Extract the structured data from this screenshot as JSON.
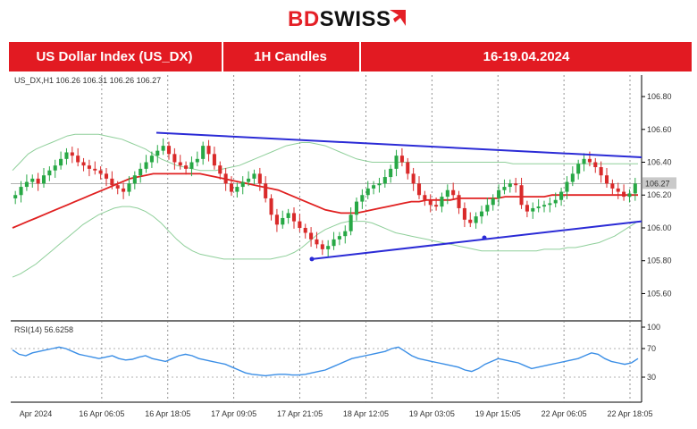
{
  "logo": {
    "part1": "BD",
    "part2": "SWISS"
  },
  "banner": {
    "instrument": "US Dollar Index (US_DX)",
    "timeframe": "1H Candles",
    "dates": "16-19.04.2024"
  },
  "chart_data": {
    "type": "candlestick",
    "symbol_label": "US_DX,H1  106.26 106.31 106.26 106.27",
    "last_price_label": "106.27",
    "last_price": 106.27,
    "ylim": [
      105.45,
      106.92
    ],
    "y_ticks": [
      105.6,
      105.8,
      106.0,
      106.2,
      106.4,
      106.6,
      106.8
    ],
    "y_tick_labels": [
      "105.60",
      "105.80",
      "106.00",
      "106.20",
      "106.40",
      "106.60",
      "106.80"
    ],
    "x_tick_labels": [
      "Apr 2024",
      "16 Apr 06:05",
      "16 Apr 18:05",
      "17 Apr 09:05",
      "17 Apr 21:05",
      "18 Apr 12:05",
      "19 Apr 03:05",
      "19 Apr 15:05",
      "22 Apr 06:05",
      "22 Apr 18:05"
    ],
    "closes": [
      106.2,
      106.25,
      106.28,
      106.3,
      106.27,
      106.32,
      106.35,
      106.38,
      106.42,
      106.46,
      106.44,
      106.4,
      106.38,
      106.36,
      106.35,
      106.33,
      106.3,
      106.26,
      106.24,
      106.22,
      106.27,
      106.32,
      106.36,
      106.4,
      106.44,
      106.47,
      106.5,
      106.45,
      106.4,
      106.38,
      106.36,
      106.4,
      106.42,
      106.5,
      106.45,
      106.38,
      106.33,
      106.27,
      106.22,
      106.25,
      106.28,
      106.3,
      106.33,
      106.27,
      106.18,
      106.08,
      106.02,
      106.06,
      106.09,
      106.04,
      106.0,
      105.97,
      105.93,
      105.9,
      105.87,
      105.89,
      105.93,
      105.95,
      105.98,
      106.08,
      106.16,
      106.2,
      106.24,
      106.26,
      106.27,
      106.31,
      106.36,
      106.44,
      106.4,
      106.33,
      106.27,
      106.2,
      106.17,
      106.14,
      106.13,
      106.19,
      106.23,
      106.2,
      106.12,
      106.05,
      106.03,
      106.07,
      106.1,
      106.14,
      106.18,
      106.23,
      106.25,
      106.27,
      106.26,
      106.14,
      106.1,
      106.12,
      106.13,
      106.14,
      106.15,
      106.17,
      106.22,
      106.28,
      106.33,
      106.39,
      106.42,
      106.4,
      106.37,
      106.32,
      106.27,
      106.24,
      106.22,
      106.19,
      106.21,
      106.27
    ],
    "series": [
      {
        "name": "MA (red)",
        "color": "#e02020",
        "values": [
          106.0,
          106.02,
          106.04,
          106.06,
          106.08,
          106.1,
          106.12,
          106.14,
          106.16,
          106.18,
          106.2,
          106.22,
          106.24,
          106.26,
          106.28,
          106.3,
          106.31,
          106.32,
          106.33,
          106.33,
          106.33,
          106.33,
          106.33,
          106.33,
          106.33,
          106.32,
          106.31,
          106.3,
          106.29,
          106.28,
          106.27,
          106.26,
          106.25,
          106.24,
          106.23,
          106.21,
          106.19,
          106.17,
          106.15,
          106.13,
          106.11,
          106.1,
          106.09,
          106.09,
          106.09,
          106.1,
          106.11,
          106.12,
          106.13,
          106.14,
          106.15,
          106.16,
          106.16,
          106.17,
          106.17,
          106.17,
          106.17,
          106.18,
          106.18,
          106.18,
          106.18,
          106.18,
          106.18,
          106.19,
          106.19,
          106.19,
          106.19,
          106.19,
          106.19,
          106.2,
          106.2,
          106.2,
          106.2,
          106.2,
          106.2,
          106.2,
          106.2,
          106.2,
          106.2,
          106.2,
          106.2
        ]
      },
      {
        "name": "Envelope upper",
        "color": "#8fcf9a",
        "values": [
          106.35,
          106.4,
          106.45,
          106.48,
          106.5,
          106.52,
          106.54,
          106.56,
          106.57,
          106.57,
          106.57,
          106.57,
          106.56,
          106.55,
          106.54,
          106.52,
          106.5,
          106.48,
          106.45,
          106.42,
          106.4,
          106.38,
          106.37,
          106.36,
          106.35,
          106.35,
          106.35,
          106.36,
          106.37,
          106.38,
          106.4,
          106.42,
          106.44,
          106.46,
          106.48,
          106.5,
          106.51,
          106.52,
          106.52,
          106.51,
          106.5,
          106.48,
          106.46,
          106.44,
          106.42,
          106.41,
          106.4,
          106.4,
          106.4,
          106.4,
          106.4,
          106.4,
          106.4,
          106.4,
          106.4,
          106.4,
          106.4,
          106.4,
          106.4,
          106.4,
          106.4,
          106.4,
          106.4,
          106.4,
          106.39,
          106.39,
          106.39,
          106.39,
          106.39,
          106.39,
          106.39,
          106.39,
          106.39,
          106.39,
          106.39,
          106.39,
          106.39,
          106.39,
          106.39,
          106.39,
          106.39
        ]
      },
      {
        "name": "Envelope lower",
        "color": "#8fcf9a",
        "values": [
          105.7,
          105.72,
          105.75,
          105.78,
          105.82,
          105.86,
          105.9,
          105.94,
          105.98,
          106.02,
          106.05,
          106.08,
          106.1,
          106.12,
          106.13,
          106.13,
          106.12,
          106.1,
          106.07,
          106.03,
          105.98,
          105.93,
          105.89,
          105.86,
          105.84,
          105.83,
          105.82,
          105.81,
          105.81,
          105.81,
          105.81,
          105.81,
          105.81,
          105.81,
          105.82,
          105.83,
          105.85,
          105.88,
          105.92,
          105.96,
          105.99,
          106.01,
          106.03,
          106.04,
          106.04,
          106.04,
          106.03,
          106.01,
          105.99,
          105.97,
          105.96,
          105.95,
          105.94,
          105.93,
          105.92,
          105.91,
          105.9,
          105.89,
          105.88,
          105.87,
          105.86,
          105.86,
          105.86,
          105.86,
          105.86,
          105.86,
          105.86,
          105.86,
          105.87,
          105.87,
          105.87,
          105.88,
          105.88,
          105.89,
          105.9,
          105.91,
          105.93,
          105.95,
          105.98,
          106.01,
          106.04
        ]
      }
    ],
    "trendlines": [
      {
        "name": "Resistance",
        "from": [
          106.58
        ],
        "to": [
          106.43
        ],
        "color": "#2b2bd6"
      },
      {
        "name": "Support",
        "from": [
          105.81
        ],
        "to": [
          106.04
        ],
        "color": "#2b2bd6"
      }
    ],
    "indicator": {
      "label": "RSI(14) 56.6258",
      "ylim": [
        0,
        100
      ],
      "ticks": [
        30,
        70,
        100
      ],
      "tick_labels": [
        "30",
        "70",
        "100"
      ],
      "values": [
        68,
        62,
        60,
        64,
        66,
        68,
        70,
        72,
        70,
        66,
        62,
        60,
        58,
        56,
        58,
        60,
        56,
        54,
        55,
        58,
        60,
        56,
        54,
        52,
        56,
        60,
        62,
        60,
        56,
        54,
        52,
        50,
        48,
        44,
        40,
        36,
        34,
        33,
        32,
        33,
        34,
        34,
        33,
        33,
        34,
        36,
        38,
        40,
        44,
        48,
        52,
        56,
        58,
        60,
        62,
        64,
        66,
        70,
        72,
        66,
        60,
        56,
        54,
        52,
        50,
        48,
        46,
        44,
        40,
        38,
        42,
        48,
        52,
        56,
        54,
        52,
        50,
        46,
        42,
        44,
        46,
        48,
        50,
        52,
        54,
        56,
        60,
        64,
        62,
        56,
        52,
        50,
        48,
        50,
        56
      ]
    }
  }
}
